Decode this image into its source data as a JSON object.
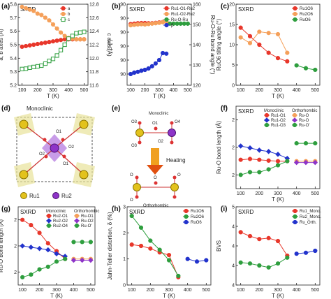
{
  "panel_labels": [
    "(a)",
    "(b)",
    "(c)",
    "(d)",
    "(e)",
    "(f)",
    "(g)",
    "(h)",
    "(i)"
  ],
  "sxrd_label": "SXRD",
  "structure_d": {
    "title": "Monoclinic",
    "atom_labels": [
      "O1",
      "O2",
      "O1",
      "O2"
    ],
    "legend": [
      {
        "name": "Ru1",
        "color": "#e3c21c"
      },
      {
        "name": "Ru2",
        "color": "#8e34c8"
      }
    ]
  },
  "structure_e": {
    "top_label": "Monoclinic",
    "arrow_label": "Heating",
    "bottom_label": "Orthorhombic",
    "o_labels": [
      "O3",
      "O1",
      "O4",
      "O2",
      "O3",
      "O",
      "O",
      "O",
      "O"
    ]
  },
  "chart_data": [
    {
      "id": "a",
      "type": "line",
      "xlabel": "T (K)",
      "ylabel": "a, b axes (Å)",
      "y2label": "c axis (Å)",
      "ylim": [
        5.2,
        5.8
      ],
      "y2lim": [
        11.6,
        12.8
      ],
      "xlim": [
        75,
        525
      ],
      "xticks": [
        100,
        200,
        300,
        400,
        500
      ],
      "yticks": [
        5.2,
        5.3,
        5.4,
        5.5,
        5.6,
        5.7,
        5.8
      ],
      "y2ticks": [
        11.6,
        11.8,
        12.0,
        12.2,
        12.4,
        12.6,
        12.8
      ],
      "series": [
        {
          "name": "a",
          "color": "#e8372b",
          "marker": "circle",
          "axis": "left",
          "x": [
            100,
            125,
            150,
            175,
            200,
            225,
            250,
            275,
            300,
            325,
            350,
            375,
            400,
            425,
            450,
            475,
            500
          ],
          "y": [
            5.485,
            5.49,
            5.495,
            5.5,
            5.505,
            5.51,
            5.515,
            5.52,
            5.525,
            5.53,
            5.535,
            5.54,
            5.54,
            5.54,
            5.54,
            5.54,
            5.54
          ]
        },
        {
          "name": "b",
          "color": "#f5a05a",
          "marker": "circle",
          "axis": "left",
          "x": [
            100,
            125,
            150,
            175,
            200,
            225,
            250,
            275,
            300,
            325,
            350,
            375,
            400,
            425,
            450,
            475,
            500
          ],
          "y": [
            5.78,
            5.77,
            5.76,
            5.75,
            5.73,
            5.72,
            5.7,
            5.68,
            5.65,
            5.62,
            5.59,
            5.565,
            5.55,
            5.545,
            5.54,
            5.54,
            5.54
          ]
        },
        {
          "name": "c",
          "color": "#2e9e3e",
          "marker": "square",
          "axis": "right",
          "x": [
            100,
            125,
            150,
            175,
            200,
            225,
            250,
            275,
            300,
            325,
            350,
            375,
            400,
            425,
            450,
            475,
            500
          ],
          "y": [
            11.84,
            11.845,
            11.86,
            11.87,
            11.88,
            11.89,
            11.92,
            11.96,
            11.99,
            12.04,
            12.12,
            12.2,
            12.29,
            12.33,
            12.37,
            12.38,
            12.39
          ]
        }
      ]
    },
    {
      "id": "b",
      "type": "line",
      "xlabel": "T (K)",
      "ylabel": "β (°)",
      "y2label": "Ru-O-Ru bond angle (°)",
      "ylim": [
        89.96,
        90.25
      ],
      "y2lim": [
        120,
        160
      ],
      "xlim": [
        75,
        525
      ],
      "xticks": [
        100,
        200,
        300,
        400,
        500
      ],
      "yticks": [
        89.95,
        90.0,
        90.05,
        90.1,
        90.15,
        90.2,
        90.25
      ],
      "y2ticks": [
        120,
        130,
        140,
        150,
        160
      ],
      "series": [
        {
          "name": "Ru1-O1-Ru2",
          "color": "#e8372b",
          "marker": "circle",
          "axis": "right",
          "x": [
            100,
            125,
            150,
            175,
            200,
            225,
            250,
            275,
            300,
            325,
            350
          ],
          "y": [
            150.2,
            150.4,
            150.6,
            150.7,
            150.7,
            150.6,
            150.6,
            150.8,
            151.0,
            151.2,
            151.4
          ]
        },
        {
          "name": "Ru1-O2-Ru2",
          "color": "#f5a05a",
          "marker": "circle",
          "axis": "right",
          "x": [
            100,
            125,
            150,
            175,
            200,
            225,
            250,
            275,
            300,
            325,
            350
          ],
          "y": [
            149.6,
            149.8,
            150.0,
            150.1,
            150.0,
            150.2,
            150.4,
            150.6,
            150.8,
            151.1,
            151.4
          ]
        },
        {
          "name": "Ru-O-Ru",
          "color": "#2e9e3e",
          "marker": "circle",
          "axis": "right",
          "x": [
            375,
            400,
            425,
            450,
            475,
            500
          ],
          "y": [
            150.4,
            150.4,
            150.4,
            150.4,
            150.4,
            150.4
          ]
        },
        {
          "name": "β",
          "color": "#2233cc",
          "marker": "circle",
          "axis": "left",
          "x": [
            100,
            125,
            150,
            175,
            200,
            225,
            250,
            275,
            300,
            325,
            350
          ],
          "y": [
            90.0,
            90.005,
            90.008,
            90.012,
            90.015,
            90.02,
            90.028,
            90.038,
            90.05,
            90.075,
            90.073
          ]
        }
      ]
    },
    {
      "id": "c",
      "type": "line",
      "xlabel": "T (K)",
      "ylabel": "RuO6 tilting angle (°)",
      "ylim": [
        0,
        20
      ],
      "xlim": [
        75,
        525
      ],
      "xticks": [
        100,
        200,
        300,
        400,
        500
      ],
      "yticks": [
        0,
        5,
        10,
        15,
        20
      ],
      "series": [
        {
          "name": "Ru1O6",
          "color": "#e8372b",
          "marker": "circle",
          "x": [
            100,
            150,
            200,
            250,
            300,
            350
          ],
          "y": [
            14.2,
            12.1,
            10.0,
            8.0,
            6.7,
            5.9
          ]
        },
        {
          "name": "Ru2O6",
          "color": "#f5a05a",
          "marker": "circle",
          "x": [
            100,
            150,
            200,
            250,
            300,
            350
          ],
          "y": [
            11.8,
            10.4,
            13.2,
            12.9,
            12.6,
            8.0
          ]
        },
        {
          "name": "RuO6",
          "color": "#2e9e3e",
          "marker": "circle",
          "x": [
            400,
            450,
            500
          ],
          "y": [
            4.9,
            4.2,
            3.8
          ]
        }
      ]
    },
    {
      "id": "f",
      "type": "line",
      "xlabel": "T (K)",
      "ylabel": "Ru-O bond length (Å)",
      "ylim": [
        1.85,
        2.15
      ],
      "xlim": [
        75,
        525
      ],
      "xticks": [
        100,
        200,
        300,
        400,
        500
      ],
      "yticks": [
        1.9,
        2.0,
        2.1
      ],
      "legend_headers": [
        "Monoclinic",
        "Orthorhombic"
      ],
      "series": [
        {
          "name": "Ru1-O1",
          "color": "#e8372b",
          "marker": "circle",
          "x": [
            100,
            150,
            200,
            250,
            300,
            350
          ],
          "y": [
            1.955,
            1.958,
            1.955,
            1.952,
            1.95,
            1.95
          ]
        },
        {
          "name": "Ru1-O2",
          "color": "#2233cc",
          "marker": "diamond",
          "x": [
            100,
            150,
            200,
            250,
            300,
            350
          ],
          "y": [
            2.005,
            1.998,
            1.99,
            1.985,
            1.975,
            1.96
          ]
        },
        {
          "name": "Ru1-O3",
          "color": "#2e9e3e",
          "marker": "circle",
          "x": [
            100,
            150,
            200,
            250,
            300,
            350
          ],
          "y": [
            1.9,
            1.91,
            1.91,
            1.92,
            1.935,
            1.95
          ]
        },
        {
          "name": "Ru-O",
          "color": "#f5a05a",
          "marker": "circle",
          "x": [
            400,
            450,
            500
          ],
          "y": [
            1.95,
            1.95,
            1.95
          ]
        },
        {
          "name": "Ru-O",
          "color": "#8e34c8",
          "marker": "diamond",
          "x": [
            400,
            450,
            500
          ],
          "y": [
            1.945,
            1.945,
            1.945
          ]
        },
        {
          "name": "Ru-O'",
          "color": "#2e9e3e",
          "marker": "circle",
          "x": [
            400,
            450,
            500
          ],
          "y": [
            2.015,
            2.015,
            2.015
          ]
        }
      ]
    },
    {
      "id": "g",
      "type": "line",
      "xlabel": "T (K)",
      "ylabel": "Ru-O bond length (Å)",
      "ylim": [
        1.85,
        2.15
      ],
      "xlim": [
        75,
        525
      ],
      "xticks": [
        100,
        200,
        300,
        400,
        500
      ],
      "yticks": [
        1.9,
        2.0,
        2.1
      ],
      "legend_headers": [
        "Monoclinic",
        "Orthorhombic"
      ],
      "series": [
        {
          "name": "Ru2-O1",
          "color": "#e8372b",
          "marker": "circle",
          "x": [
            100,
            150,
            200,
            250,
            300,
            350
          ],
          "y": [
            2.1,
            2.08,
            2.05,
            2.01,
            1.98,
            1.95
          ]
        },
        {
          "name": "Ru2-O2",
          "color": "#2233cc",
          "marker": "diamond",
          "x": [
            100,
            150,
            200,
            250,
            300,
            350
          ],
          "y": [
            2.0,
            1.995,
            1.99,
            1.985,
            1.97,
            1.96
          ]
        },
        {
          "name": "Ru2-O4",
          "color": "#2e9e3e",
          "marker": "circle",
          "x": [
            100,
            150,
            200,
            250,
            300,
            350
          ],
          "y": [
            1.88,
            1.89,
            1.91,
            1.92,
            1.94,
            1.95
          ]
        },
        {
          "name": "Ru-O1",
          "color": "#f5a05a",
          "marker": "circle",
          "x": [
            400,
            450,
            500
          ],
          "y": [
            1.95,
            1.95,
            1.95
          ]
        },
        {
          "name": "Ru-O2",
          "color": "#8e34c8",
          "marker": "diamond",
          "x": [
            400,
            450,
            500
          ],
          "y": [
            1.945,
            1.945,
            1.945
          ]
        },
        {
          "name": "Ru-O'",
          "color": "#2e9e3e",
          "marker": "circle",
          "x": [
            400,
            450,
            500
          ],
          "y": [
            2.015,
            2.015,
            2.015
          ]
        }
      ]
    },
    {
      "id": "h",
      "type": "line",
      "xlabel": "T (K)",
      "ylabel": "Jahn-Teller distortion, δ (%)",
      "ylim": [
        0,
        3
      ],
      "xlim": [
        75,
        525
      ],
      "xticks": [
        100,
        200,
        300,
        400,
        500
      ],
      "yticks": [
        0,
        1,
        2,
        3
      ],
      "series": [
        {
          "name": "Ru1O6",
          "color": "#e8372b",
          "marker": "circle",
          "x": [
            100,
            150,
            200,
            250,
            300,
            350
          ],
          "y": [
            1.55,
            1.5,
            1.4,
            1.25,
            1.15,
            0.3
          ]
        },
        {
          "name": "Ru2O6",
          "color": "#2e9e3e",
          "marker": "circle",
          "x": [
            100,
            150,
            200,
            250,
            300,
            350
          ],
          "y": [
            2.65,
            2.2,
            1.7,
            1.35,
            0.95,
            0.35
          ]
        },
        {
          "name": "RuO6",
          "color": "#2233cc",
          "marker": "circle",
          "x": [
            400,
            450,
            500
          ],
          "y": [
            1.0,
            0.9,
            0.95
          ]
        }
      ]
    },
    {
      "id": "i",
      "type": "line",
      "xlabel": "T (K)",
      "ylabel": "BVS",
      "ylim": [
        3.8,
        4.6
      ],
      "xlim": [
        75,
        525
      ],
      "xticks": [
        100,
        200,
        300,
        400,
        500
      ],
      "yticks": [
        3.8,
        4.0,
        4.2,
        4.4,
        4.6
      ],
      "series": [
        {
          "name": "Ru1_Mono.",
          "color": "#e8372b",
          "marker": "circle",
          "x": [
            100,
            150,
            200,
            250,
            300,
            350
          ],
          "y": [
            4.34,
            4.3,
            4.27,
            4.28,
            4.25,
            4.1
          ]
        },
        {
          "name": "Ru2_Mono.",
          "color": "#2e9e3e",
          "marker": "circle",
          "x": [
            100,
            150,
            200,
            250,
            300,
            350
          ],
          "y": [
            4.03,
            4.02,
            4.0,
            3.98,
            4.02,
            4.08
          ]
        },
        {
          "name": "Ru_Orth.",
          "color": "#2233cc",
          "marker": "circle",
          "x": [
            400,
            450,
            500
          ],
          "y": [
            4.12,
            4.13,
            4.15
          ]
        }
      ]
    }
  ]
}
